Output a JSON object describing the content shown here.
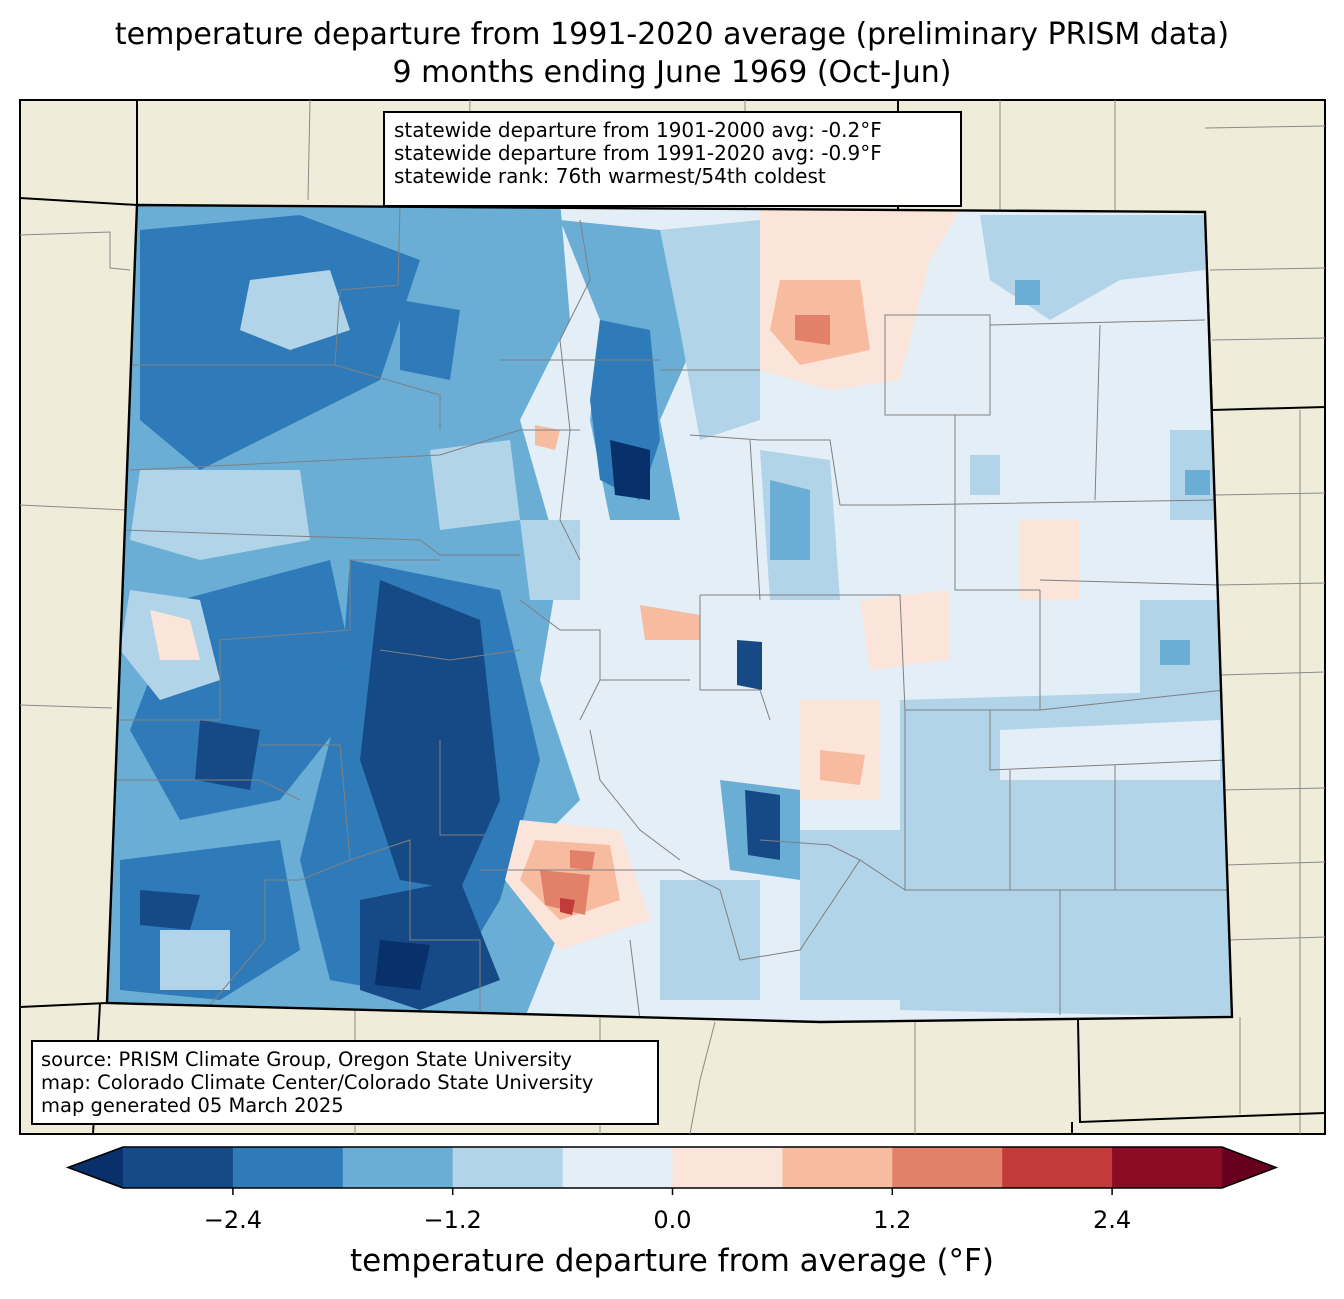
{
  "title": {
    "line1": "temperature departure from 1991-2020 average (preliminary PRISM data)",
    "line2": "9 months ending June 1969 (Oct-Jun)"
  },
  "stats": {
    "line1": "statewide departure from 1901-2000 avg: -0.2°F",
    "line2": "statewide departure from 1991-2020 avg: -0.9°F",
    "line3": "statewide rank: 76th warmest/54th coldest"
  },
  "source": {
    "line1": "source: PRISM Climate Group, Oregon State University",
    "line2": "map: Colorado Climate Center/Colorado State University",
    "line3": "map generated 05 March 2025"
  },
  "colorbar": {
    "label": "temperature departure from average (°F)",
    "ticks": [
      "−2.4",
      "−1.2",
      "0.0",
      "1.2",
      "2.4"
    ],
    "tick_values": [
      -2.4,
      -1.2,
      0.0,
      1.2,
      2.4
    ],
    "range": [
      -3.0,
      3.0
    ],
    "colors": [
      "#08306b",
      "#164a86",
      "#2f7bba",
      "#6aaed6",
      "#b1d4e8",
      "#e4eef6",
      "#fbe5db",
      "#f7bba0",
      "#e3806a",
      "#c23a3a",
      "#8b0c25",
      "#67001f"
    ]
  },
  "colors": {
    "land": "#efedd9",
    "state_border": "#000000",
    "county_border": "#808080"
  }
}
